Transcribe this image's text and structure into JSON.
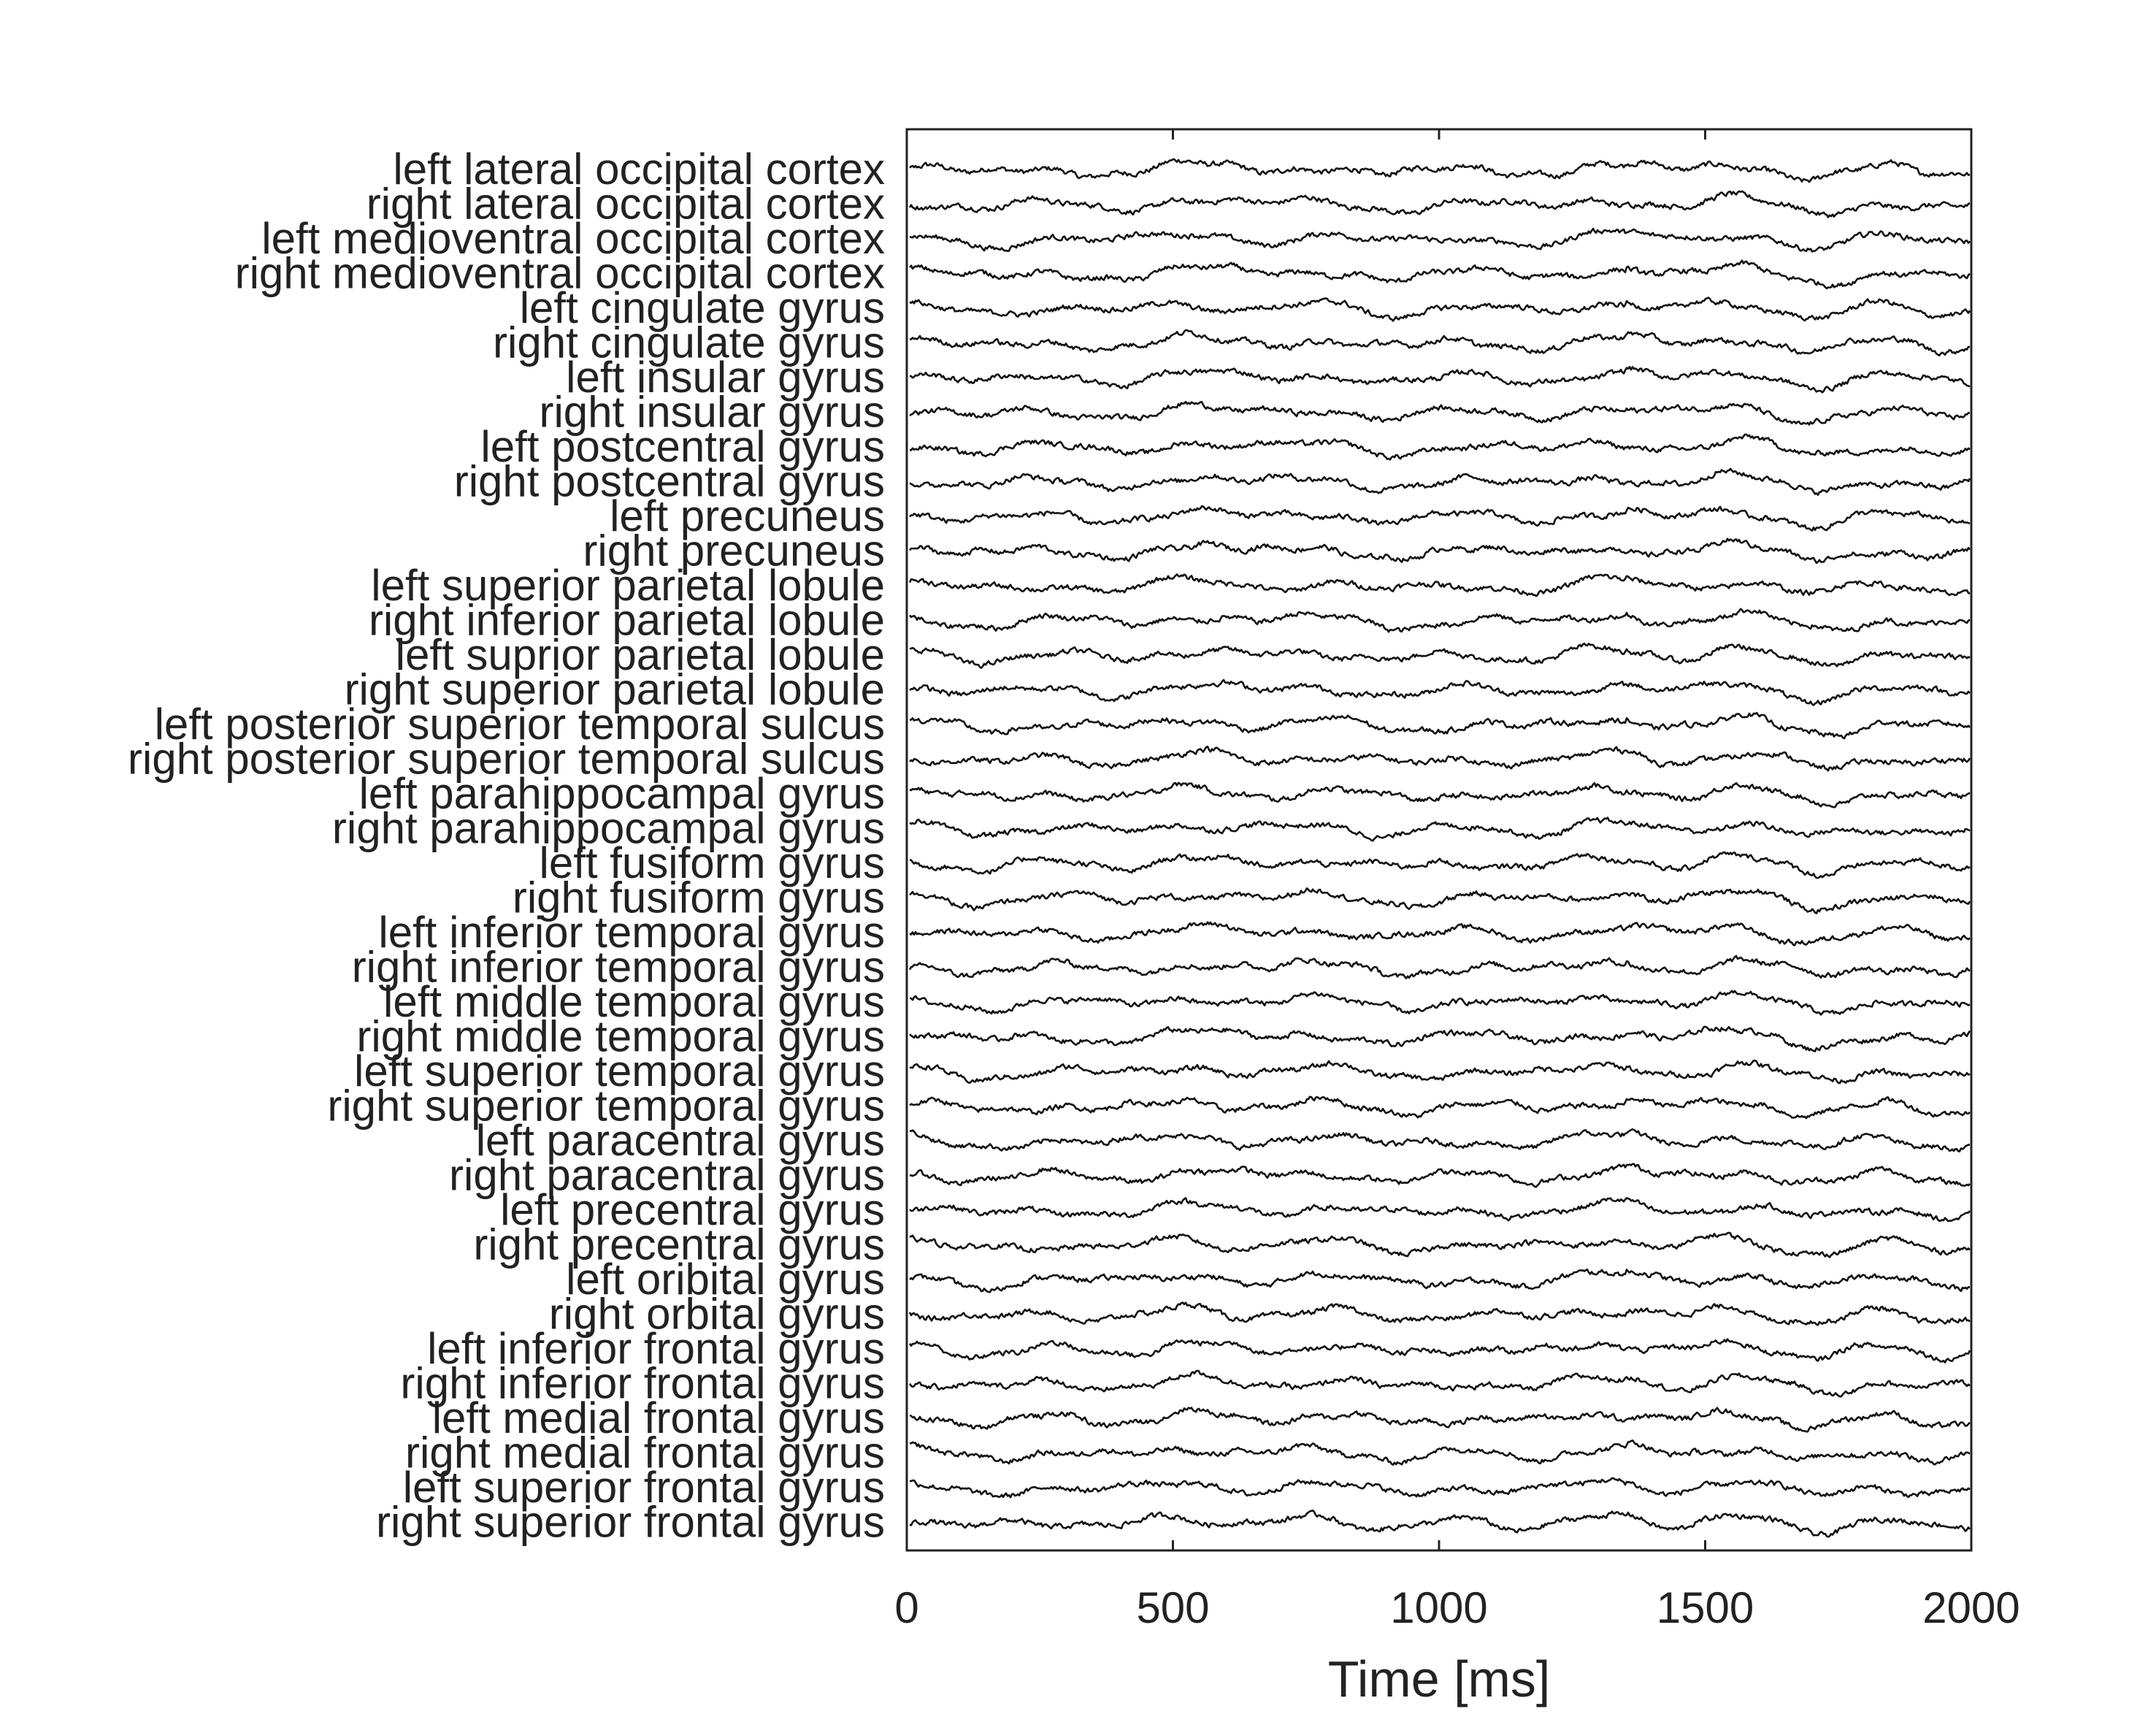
{
  "chart_data": {
    "type": "line",
    "xlabel": "Time [ms]",
    "xlim": [
      0,
      2000
    ],
    "xticks": [
      0,
      500,
      1000,
      1500,
      2000
    ],
    "grid": false,
    "legend": "none",
    "line_color": "#111111",
    "series": [
      {
        "name": "left lateral occipital cortex"
      },
      {
        "name": "right lateral occipital cortex"
      },
      {
        "name": "left medioventral occipital cortex"
      },
      {
        "name": "right medioventral occipital cortex"
      },
      {
        "name": "left cingulate gyrus"
      },
      {
        "name": "right cingulate gyrus"
      },
      {
        "name": "left insular gyrus"
      },
      {
        "name": "right insular gyrus"
      },
      {
        "name": "left postcentral gyrus"
      },
      {
        "name": "right postcentral gyrus"
      },
      {
        "name": "left precuneus"
      },
      {
        "name": "right precuneus"
      },
      {
        "name": "left superior parietal lobule"
      },
      {
        "name": "right inferior parietal lobule"
      },
      {
        "name": "left suprior parietal lobule"
      },
      {
        "name": "right superior parietal lobule"
      },
      {
        "name": "left posterior superior temporal sulcus"
      },
      {
        "name": "right posterior superior temporal sulcus"
      },
      {
        "name": "left parahippocampal gyrus"
      },
      {
        "name": "right parahippocampal gyrus"
      },
      {
        "name": "left fusiform gyrus"
      },
      {
        "name": "right fusiform gyrus"
      },
      {
        "name": "left inferior temporal gyrus"
      },
      {
        "name": "right inferior temporal gyrus"
      },
      {
        "name": "left middle temporal gyrus"
      },
      {
        "name": "right middle temporal gyrus"
      },
      {
        "name": "left superior temporal gyrus"
      },
      {
        "name": "right superior temporal gyrus"
      },
      {
        "name": "left paracentral gyrus"
      },
      {
        "name": "right paracentral gyrus"
      },
      {
        "name": "left precentral gyrus"
      },
      {
        "name": "right precentral gyrus"
      },
      {
        "name": "left oribital gyrus"
      },
      {
        "name": "right orbital gyrus"
      },
      {
        "name": "left inferior frontal gyrus"
      },
      {
        "name": "right inferior frontal gyrus"
      },
      {
        "name": "left medial frontal gyrus"
      },
      {
        "name": "right medial frontal gyrus"
      },
      {
        "name": "left superior frontal gyrus"
      },
      {
        "name": "right superior frontal gyrus"
      }
    ]
  }
}
